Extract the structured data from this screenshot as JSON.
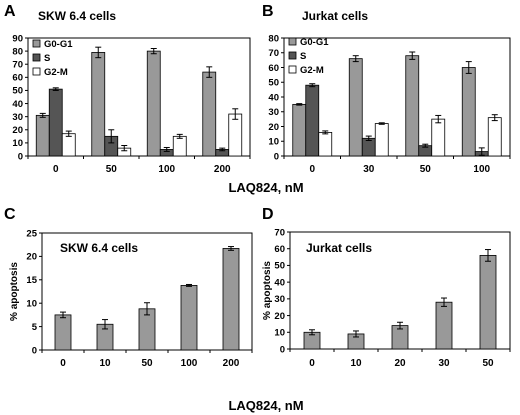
{
  "figure": {
    "shared_xlabel_top": "LAQ824, nM",
    "shared_xlabel_bottom": "LAQ824, nM"
  },
  "colors": {
    "g0g1": "#999999",
    "s": "#555555",
    "g2m": "#ffffff",
    "apoptosis": "#999999",
    "stroke": "#000000"
  },
  "chart_data": [
    {
      "id": "A",
      "type": "bar",
      "panel_label": "A",
      "title": "SKW 6.4 cells",
      "xlabel": "LAQ824, nM",
      "ylabel": "",
      "categories": [
        "0",
        "50",
        "100",
        "200"
      ],
      "ylim": [
        0,
        90
      ],
      "yticks": [
        0,
        10,
        20,
        30,
        40,
        50,
        60,
        70,
        80,
        90
      ],
      "grid": false,
      "legend": "top-left",
      "series": [
        {
          "name": "G0-G1",
          "values": [
            31,
            79,
            80,
            64
          ],
          "errors": [
            1.5,
            4,
            2,
            4
          ]
        },
        {
          "name": "S",
          "values": [
            51,
            15,
            5,
            5
          ],
          "errors": [
            1,
            5,
            1.5,
            1
          ]
        },
        {
          "name": "G2-M",
          "values": [
            17,
            6,
            15,
            32
          ],
          "errors": [
            2,
            2,
            1.5,
            4
          ]
        }
      ]
    },
    {
      "id": "B",
      "type": "bar",
      "panel_label": "B",
      "title": "Jurkat cells",
      "xlabel": "LAQ824, nM",
      "ylabel": "",
      "categories": [
        "0",
        "30",
        "50",
        "100"
      ],
      "ylim": [
        0,
        80
      ],
      "yticks": [
        0,
        10,
        20,
        30,
        40,
        50,
        60,
        70,
        80
      ],
      "grid": false,
      "legend": "top-left",
      "series": [
        {
          "name": "G0-G1",
          "values": [
            35,
            66,
            68,
            60
          ],
          "errors": [
            0.5,
            2,
            2.5,
            4
          ]
        },
        {
          "name": "S",
          "values": [
            48,
            12,
            7,
            3
          ],
          "errors": [
            1,
            1.5,
            1,
            2.5
          ]
        },
        {
          "name": "G2-M",
          "values": [
            16,
            22,
            25,
            26
          ],
          "errors": [
            1,
            0.5,
            2.5,
            2
          ]
        }
      ]
    },
    {
      "id": "C",
      "type": "bar",
      "panel_label": "C",
      "title": "SKW 6.4 cells",
      "xlabel": "LAQ824, nM",
      "ylabel": "% apoptosis",
      "categories": [
        "0",
        "10",
        "50",
        "100",
        "200"
      ],
      "ylim": [
        0,
        25
      ],
      "yticks": [
        0,
        5,
        10,
        15,
        20,
        25
      ],
      "grid": false,
      "legend": "none",
      "series": [
        {
          "name": "",
          "values": [
            7.5,
            5.5,
            8.8,
            13.8,
            21.7
          ],
          "errors": [
            0.6,
            1.0,
            1.3,
            0.2,
            0.4
          ]
        }
      ]
    },
    {
      "id": "D",
      "type": "bar",
      "panel_label": "D",
      "title": "Jurkat cells",
      "xlabel": "",
      "ylabel": "% apoptosis",
      "categories": [
        "0",
        "10",
        "20",
        "30",
        "50"
      ],
      "ylim": [
        0,
        70
      ],
      "yticks": [
        0,
        10,
        20,
        30,
        40,
        50,
        60,
        70
      ],
      "grid": false,
      "legend": "none",
      "series": [
        {
          "name": "",
          "values": [
            10,
            9,
            14,
            28,
            56
          ],
          "errors": [
            1.5,
            1.8,
            2,
            2.5,
            3.5
          ]
        }
      ]
    }
  ]
}
